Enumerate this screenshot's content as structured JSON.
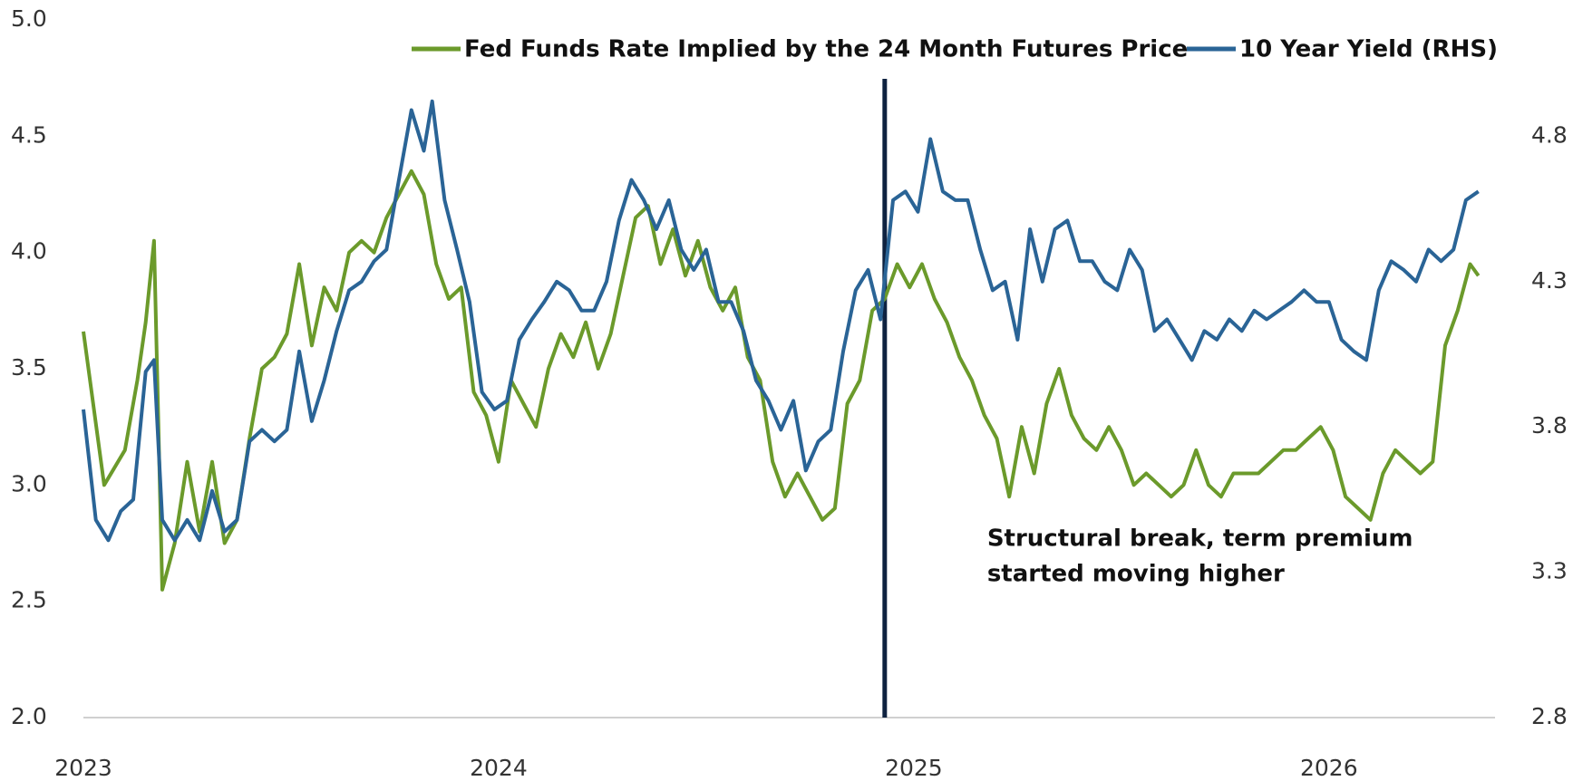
{
  "chart_data": {
    "type": "line",
    "xlim": [
      2023,
      2026.4
    ],
    "xticks": [
      2023,
      2024,
      2025,
      2026
    ],
    "ylim": [
      2,
      5
    ],
    "yticks": [
      {
        "value": 2,
        "label": "2.0"
      },
      2.5,
      {
        "value": 3,
        "label": "3.0"
      },
      3.5,
      {
        "value": 4,
        "label": "4.0"
      },
      4.5,
      {
        "value": 5,
        "label": "5.0"
      }
    ],
    "y2lim": [
      2.8,
      5.2
    ],
    "y2ticks": [
      2.8,
      3.3,
      3.8,
      4.3,
      4.8
    ],
    "legend": "top",
    "annotation": {
      "text": [
        "Structural break, term premium",
        "started moving higher"
      ],
      "x": 2024.93,
      "color": "#0e2240"
    },
    "series": [
      {
        "name": "Fed Funds Rate Implied by the 24 Month Futures Price",
        "color": "#6b9a2b",
        "x": [
          2023.0,
          2023.05,
          2023.1,
          2023.13,
          2023.15,
          2023.17,
          2023.19,
          2023.22,
          2023.25,
          2023.28,
          2023.31,
          2023.34,
          2023.37,
          2023.4,
          2023.43,
          2023.46,
          2023.49,
          2023.52,
          2023.55,
          2023.58,
          2023.61,
          2023.64,
          2023.67,
          2023.7,
          2023.73,
          2023.76,
          2023.79,
          2023.82,
          2023.85,
          2023.88,
          2023.91,
          2023.94,
          2023.97,
          2024.0,
          2024.03,
          2024.06,
          2024.09,
          2024.12,
          2024.15,
          2024.18,
          2024.21,
          2024.24,
          2024.27,
          2024.3,
          2024.33,
          2024.36,
          2024.39,
          2024.42,
          2024.45,
          2024.48,
          2024.51,
          2024.54,
          2024.57,
          2024.6,
          2024.63,
          2024.66,
          2024.69,
          2024.72,
          2024.75,
          2024.78,
          2024.81,
          2024.84,
          2024.87,
          2024.9,
          2024.93,
          2024.96,
          2024.99,
          2025.02,
          2025.05,
          2025.08,
          2025.11,
          2025.14,
          2025.17,
          2025.2,
          2025.23,
          2025.26,
          2025.29,
          2025.32,
          2025.35,
          2025.38,
          2025.41,
          2025.44,
          2025.47,
          2025.5,
          2025.53,
          2025.56,
          2025.59,
          2025.62,
          2025.65,
          2025.68,
          2025.71,
          2025.74,
          2025.77,
          2025.8,
          2025.83,
          2025.86,
          2025.89,
          2025.92,
          2025.95,
          2025.98,
          2026.01,
          2026.04,
          2026.07,
          2026.1,
          2026.13,
          2026.16,
          2026.19,
          2026.22,
          2026.25,
          2026.28,
          2026.31,
          2026.34,
          2026.36
        ],
        "values": [
          3.66,
          3.0,
          3.15,
          3.45,
          3.7,
          4.05,
          2.55,
          2.75,
          3.1,
          2.8,
          3.1,
          2.75,
          2.85,
          3.2,
          3.5,
          3.55,
          3.65,
          3.95,
          3.6,
          3.85,
          3.75,
          4.0,
          4.05,
          4.0,
          4.15,
          4.25,
          4.35,
          4.25,
          3.95,
          3.8,
          3.85,
          3.4,
          3.3,
          3.1,
          3.45,
          3.35,
          3.25,
          3.5,
          3.65,
          3.55,
          3.7,
          3.5,
          3.65,
          3.9,
          4.15,
          4.2,
          3.95,
          4.1,
          3.9,
          4.05,
          3.85,
          3.75,
          3.85,
          3.55,
          3.45,
          3.1,
          2.95,
          3.05,
          2.95,
          2.85,
          2.9,
          3.35,
          3.45,
          3.75,
          3.8,
          3.95,
          3.85,
          3.95,
          3.8,
          3.7,
          3.55,
          3.45,
          3.3,
          3.2,
          2.95,
          3.25,
          3.05,
          3.35,
          3.5,
          3.3,
          3.2,
          3.15,
          3.25,
          3.15,
          3.0,
          3.05,
          3.0,
          2.95,
          3.0,
          3.15,
          3.0,
          2.95,
          3.05,
          3.05,
          3.05,
          3.1,
          3.15,
          3.15,
          3.2,
          3.25,
          3.15,
          2.95,
          2.9,
          2.85,
          3.05,
          3.15,
          3.1,
          3.05,
          3.1,
          3.6,
          3.75,
          3.95,
          3.9
        ]
      },
      {
        "name": "10 Year Yield (RHS)",
        "color": "#2a6496",
        "axis": "y2",
        "x": [
          2023.0,
          2023.03,
          2023.06,
          2023.09,
          2023.12,
          2023.15,
          2023.17,
          2023.19,
          2023.22,
          2023.25,
          2023.28,
          2023.31,
          2023.34,
          2023.37,
          2023.4,
          2023.43,
          2023.46,
          2023.49,
          2023.52,
          2023.55,
          2023.58,
          2023.61,
          2023.64,
          2023.67,
          2023.7,
          2023.73,
          2023.76,
          2023.79,
          2023.82,
          2023.84,
          2023.87,
          2023.9,
          2023.93,
          2023.96,
          2023.99,
          2024.02,
          2024.05,
          2024.08,
          2024.11,
          2024.14,
          2024.17,
          2024.2,
          2024.23,
          2024.26,
          2024.29,
          2024.32,
          2024.35,
          2024.38,
          2024.41,
          2024.44,
          2024.47,
          2024.5,
          2024.53,
          2024.56,
          2024.59,
          2024.62,
          2024.65,
          2024.68,
          2024.71,
          2024.74,
          2024.77,
          2024.8,
          2024.83,
          2024.86,
          2024.89,
          2024.92,
          2024.95,
          2024.98,
          2025.01,
          2025.04,
          2025.07,
          2025.1,
          2025.13,
          2025.16,
          2025.19,
          2025.22,
          2025.25,
          2025.28,
          2025.31,
          2025.34,
          2025.37,
          2025.4,
          2025.43,
          2025.46,
          2025.49,
          2025.52,
          2025.55,
          2025.58,
          2025.61,
          2025.64,
          2025.67,
          2025.7,
          2025.73,
          2025.76,
          2025.79,
          2025.82,
          2025.85,
          2025.88,
          2025.91,
          2025.94,
          2025.97,
          2026.0,
          2026.03,
          2026.06,
          2026.09,
          2026.12,
          2026.15,
          2026.18,
          2026.21,
          2026.24,
          2026.27,
          2026.3,
          2026.33,
          2026.36
        ],
        "values": [
          3.86,
          3.48,
          3.41,
          3.51,
          3.55,
          3.99,
          4.03,
          3.48,
          3.41,
          3.48,
          3.41,
          3.58,
          3.44,
          3.48,
          3.75,
          3.79,
          3.75,
          3.79,
          4.06,
          3.82,
          3.96,
          4.13,
          4.27,
          4.3,
          4.37,
          4.41,
          4.65,
          4.89,
          4.75,
          4.92,
          4.58,
          4.41,
          4.23,
          3.92,
          3.86,
          3.89,
          4.1,
          4.17,
          4.23,
          4.3,
          4.27,
          4.2,
          4.2,
          4.3,
          4.51,
          4.65,
          4.58,
          4.48,
          4.58,
          4.41,
          4.34,
          4.41,
          4.23,
          4.23,
          4.13,
          3.96,
          3.89,
          3.79,
          3.89,
          3.65,
          3.75,
          3.79,
          4.06,
          4.27,
          4.34,
          4.17,
          4.58,
          4.61,
          4.54,
          4.79,
          4.61,
          4.58,
          4.58,
          4.41,
          4.27,
          4.3,
          4.1,
          4.48,
          4.3,
          4.48,
          4.51,
          4.37,
          4.37,
          4.3,
          4.27,
          4.41,
          4.34,
          4.13,
          4.17,
          4.1,
          4.03,
          4.13,
          4.1,
          4.17,
          4.13,
          4.2,
          4.17,
          4.2,
          4.23,
          4.27,
          4.23,
          4.23,
          4.1,
          4.06,
          4.03,
          4.27,
          4.37,
          4.34,
          4.3,
          4.41,
          4.37,
          4.41,
          4.58,
          4.61
        ]
      }
    ]
  }
}
